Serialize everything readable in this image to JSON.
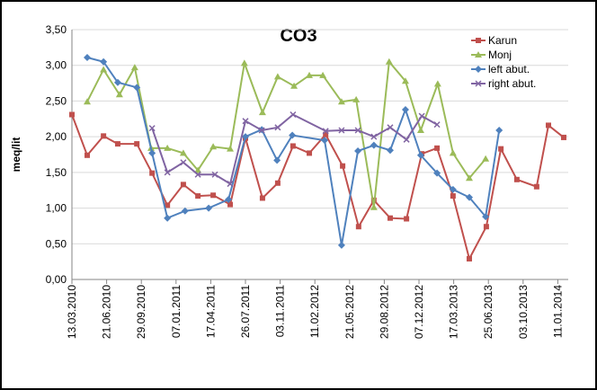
{
  "chart_data": {
    "type": "line",
    "title": "CO3",
    "y_label": "meq/lit",
    "xlim": [
      0,
      1430
    ],
    "xticks": [
      {
        "value": 0,
        "label": "13.03.2010"
      },
      {
        "value": 100,
        "label": "21.06.2010"
      },
      {
        "value": 200,
        "label": "29.09.2010"
      },
      {
        "value": 300,
        "label": "07.01.2011"
      },
      {
        "value": 400,
        "label": "17.04.2011"
      },
      {
        "value": 500,
        "label": "26.07.2011"
      },
      {
        "value": 600,
        "label": "03.11.2011"
      },
      {
        "value": 700,
        "label": "11.02.2012"
      },
      {
        "value": 800,
        "label": "21.05.2012"
      },
      {
        "value": 900,
        "label": "29.08.2012"
      },
      {
        "value": 1000,
        "label": "07.12.2012"
      },
      {
        "value": 1100,
        "label": "17.03.2013"
      },
      {
        "value": 1200,
        "label": "25.06.2013"
      },
      {
        "value": 1300,
        "label": "03.10.2013"
      },
      {
        "value": 1400,
        "label": "11.01.2014"
      }
    ],
    "ylim": [
      0,
      3.5
    ],
    "yticks": [
      {
        "value": 0,
        "label": "0,00"
      },
      {
        "value": 0.5,
        "label": "0,50"
      },
      {
        "value": 1,
        "label": "1,00"
      },
      {
        "value": 1.5,
        "label": "1,50"
      },
      {
        "value": 2,
        "label": "2,00"
      },
      {
        "value": 2.5,
        "label": "2,50"
      },
      {
        "value": 3,
        "label": "3,00"
      },
      {
        "value": 3.5,
        "label": "3,50"
      }
    ],
    "grid": true,
    "legend": "top-right",
    "series": [
      {
        "name": "Karun",
        "color": "#c0504d",
        "marker": "square",
        "x": [
          0,
          44,
          91,
          132,
          187,
          231,
          275,
          321,
          363,
          407,
          456,
          500,
          549,
          593,
          637,
          684,
          731,
          780,
          826,
          870,
          917,
          964,
          1008,
          1052,
          1098,
          1145,
          1194,
          1236,
          1282,
          1339,
          1373,
          1417
        ],
        "values": [
          2.31,
          1.74,
          2.01,
          1.9,
          1.9,
          1.49,
          1.04,
          1.33,
          1.17,
          1.18,
          1.05,
          1.98,
          1.14,
          1.35,
          1.87,
          1.77,
          2.03,
          1.59,
          0.74,
          1.11,
          0.86,
          0.85,
          1.76,
          1.84,
          1.17,
          0.29,
          0.74,
          1.83,
          1.4,
          1.3,
          2.16,
          1.99
        ]
      },
      {
        "name": "Monj",
        "color": "#9bbb59",
        "marker": "triangle",
        "x": [
          44,
          91,
          137,
          181,
          228,
          275,
          321,
          363,
          407,
          456,
          497,
          549,
          593,
          640,
          684,
          723,
          777,
          819,
          870,
          914,
          961,
          1005,
          1054,
          1098,
          1145,
          1192
        ],
        "values": [
          2.49,
          2.94,
          2.59,
          2.97,
          1.84,
          1.84,
          1.77,
          1.53,
          1.86,
          1.83,
          3.03,
          2.34,
          2.84,
          2.71,
          2.86,
          2.86,
          2.49,
          2.52,
          1.01,
          3.05,
          2.78,
          2.09,
          2.74,
          1.77,
          1.42,
          1.69
        ]
      },
      {
        "name": "left abut.",
        "color": "#4f81bd",
        "marker": "diamond",
        "x": [
          44,
          91,
          132,
          187,
          231,
          275,
          326,
          394,
          451,
          500,
          547,
          591,
          635,
          728,
          777,
          824,
          870,
          917,
          961,
          1005,
          1052,
          1098,
          1145,
          1192,
          1231
        ],
        "values": [
          3.11,
          3.05,
          2.76,
          2.69,
          1.77,
          0.86,
          0.96,
          1.0,
          1.12,
          2.0,
          2.1,
          1.67,
          2.02,
          1.95,
          0.48,
          1.8,
          1.88,
          1.81,
          2.38,
          1.74,
          1.49,
          1.26,
          1.15,
          0.88,
          2.09
        ]
      },
      {
        "name": "right abut.",
        "color": "#8064a2",
        "marker": "x",
        "x": [
          231,
          275,
          321,
          363,
          412,
          456,
          500,
          547,
          593,
          637,
          731,
          777,
          824,
          870,
          917,
          964,
          1008,
          1052
        ],
        "values": [
          2.12,
          1.5,
          1.64,
          1.47,
          1.47,
          1.34,
          2.22,
          2.09,
          2.13,
          2.31,
          2.08,
          2.09,
          2.09,
          2.0,
          2.13,
          1.96,
          2.29,
          2.17
        ]
      }
    ]
  }
}
